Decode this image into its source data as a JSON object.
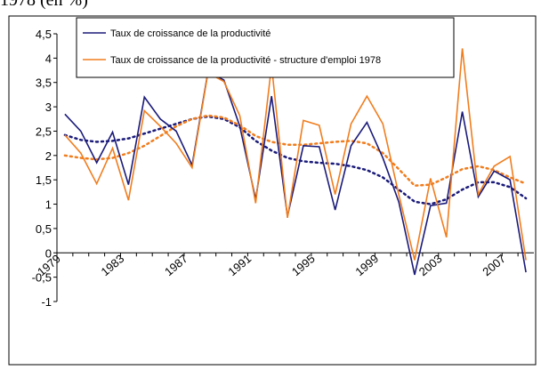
{
  "chart_data": {
    "type": "line",
    "title": "1978 (en %)",
    "categories": [
      "1979",
      null,
      null,
      null,
      "1983",
      null,
      null,
      null,
      "1987",
      null,
      null,
      null,
      "1991",
      null,
      null,
      null,
      "1995",
      null,
      null,
      null,
      "1999",
      null,
      null,
      null,
      "2003",
      null,
      null,
      null,
      "2007",
      null
    ],
    "series": [
      {
        "name": "Taux de croissance de la productivité",
        "color": "#1a1a7a",
        "values": [
          2.85,
          2.5,
          1.85,
          2.48,
          1.4,
          3.2,
          2.75,
          2.5,
          1.8,
          3.72,
          3.55,
          2.6,
          1.1,
          3.22,
          0.75,
          2.2,
          2.18,
          0.88,
          2.2,
          2.68,
          1.95,
          1.05,
          -0.45,
          0.97,
          1.02,
          2.9,
          1.15,
          1.68,
          1.5,
          -0.4
        ],
        "trend": [
          2.42,
          2.32,
          2.28,
          2.3,
          2.35,
          2.45,
          2.55,
          2.65,
          2.75,
          2.8,
          2.75,
          2.58,
          2.3,
          2.1,
          1.95,
          1.88,
          1.85,
          1.83,
          1.78,
          1.7,
          1.55,
          1.3,
          1.05,
          1.0,
          1.1,
          1.3,
          1.45,
          1.45,
          1.35,
          1.12
        ]
      },
      {
        "name": "Taux de croissance de la productivité - structure d'emploi 1978",
        "color": "#f07d1e",
        "values": [
          2.42,
          2.05,
          1.42,
          2.15,
          1.08,
          2.92,
          2.6,
          2.25,
          1.75,
          3.7,
          3.52,
          2.82,
          1.02,
          3.85,
          0.72,
          2.72,
          2.62,
          1.2,
          2.65,
          3.22,
          2.65,
          1.2,
          -0.15,
          1.53,
          0.32,
          4.2,
          1.2,
          1.78,
          1.98,
          -0.15
        ],
        "trend": [
          2.0,
          1.95,
          1.92,
          1.95,
          2.05,
          2.2,
          2.4,
          2.6,
          2.75,
          2.82,
          2.78,
          2.62,
          2.4,
          2.28,
          2.22,
          2.22,
          2.25,
          2.28,
          2.3,
          2.25,
          2.05,
          1.72,
          1.38,
          1.4,
          1.55,
          1.72,
          1.78,
          1.7,
          1.55,
          1.42
        ]
      }
    ],
    "ylim": [
      -1,
      4.5
    ],
    "yticks": [
      {
        "value": -1,
        "label": "-1"
      },
      {
        "value": -0.5,
        "label": "-0,5"
      },
      0,
      {
        "value": 0.5,
        "label": "0,5"
      },
      1,
      {
        "value": 1.5,
        "label": "1,5"
      },
      2,
      {
        "value": 2.5,
        "label": "2,5"
      },
      3,
      {
        "value": 3.5,
        "label": "3,5"
      },
      4,
      {
        "value": 4.5,
        "label": "4,5"
      }
    ],
    "grid": false
  }
}
